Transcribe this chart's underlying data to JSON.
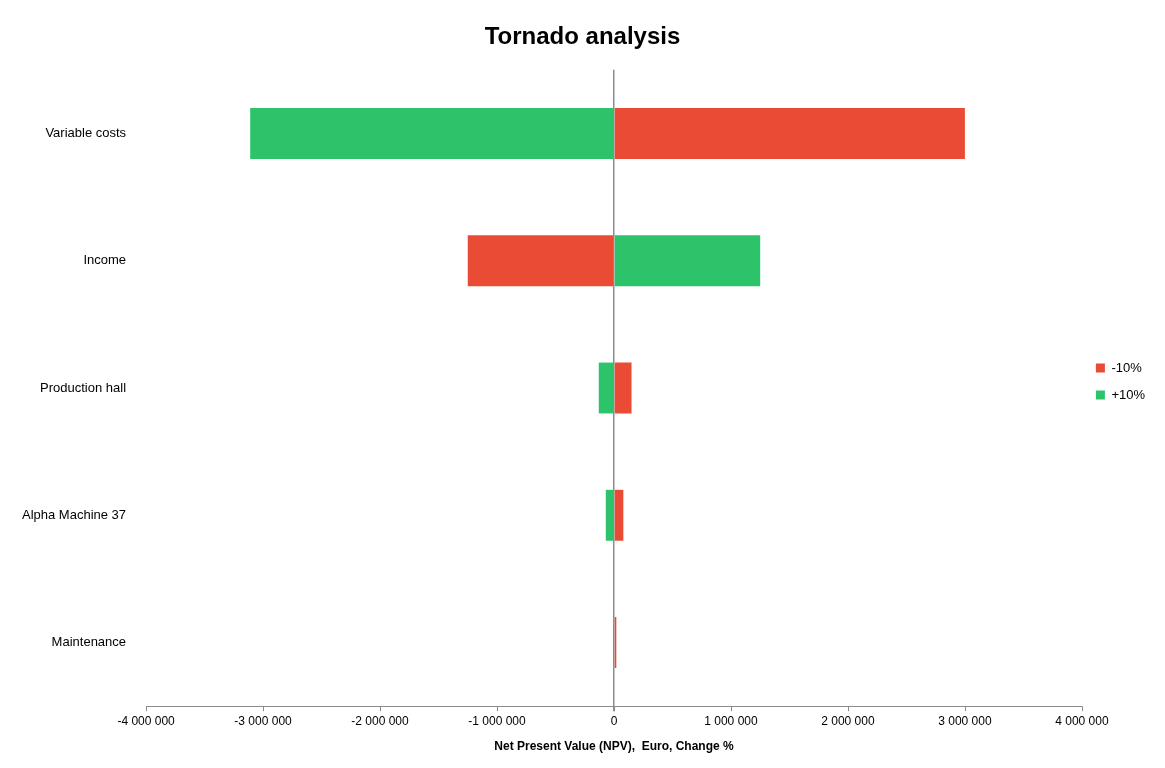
{
  "chart_data": {
    "type": "bar",
    "orientation": "horizontal",
    "stacked": true,
    "title": "Tornado analysis",
    "xlabel": "Net Present Value (NPV),  Euro, Change %",
    "categories": [
      "Variable costs",
      "Income",
      "Production hall",
      "Alpha Machine 37",
      "Maintenance"
    ],
    "series": [
      {
        "name": "-10%",
        "color": "#e94b35",
        "values": [
          3000000,
          -1250000,
          150000,
          80000,
          20000
        ]
      },
      {
        "name": "+10%",
        "color": "#2cc36b",
        "values": [
          -3110000,
          1250000,
          -130000,
          -70000,
          0
        ]
      }
    ],
    "xlim": [
      -4000000,
      4000000
    ],
    "xticks": [
      {
        "value": -4000000,
        "label": "-4 000 000"
      },
      {
        "value": -3000000,
        "label": "-3 000 000"
      },
      {
        "value": -2000000,
        "label": "-2 000 000"
      },
      {
        "value": -1000000,
        "label": "-1 000 000"
      },
      0,
      {
        "value": 1000000,
        "label": "1 000 000"
      },
      {
        "value": 2000000,
        "label": "2 000 000"
      },
      {
        "value": 3000000,
        "label": "3 000 000"
      },
      {
        "value": 4000000,
        "label": "4 000 000"
      }
    ],
    "legend": "right"
  }
}
